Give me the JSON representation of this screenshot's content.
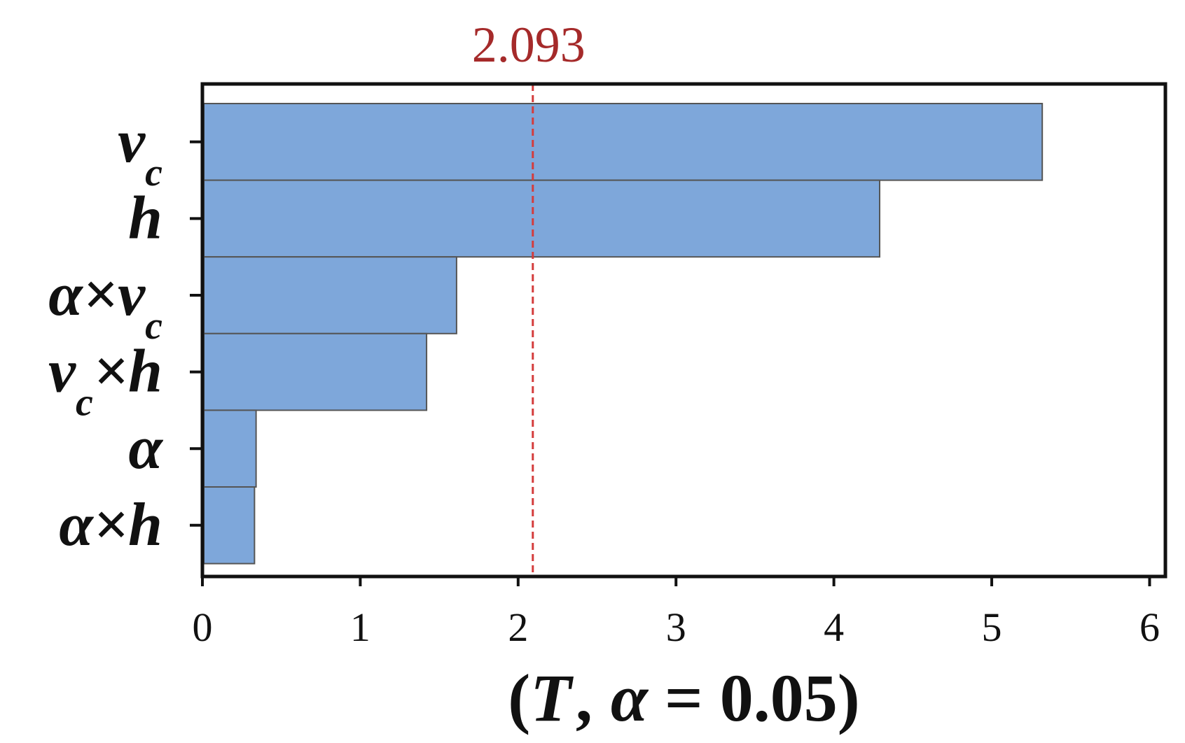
{
  "chart_data": {
    "type": "bar",
    "orientation": "horizontal",
    "categories": [
      {
        "main": "v",
        "sub": "c",
        "tail": ""
      },
      {
        "main": "h",
        "sub": "",
        "tail": ""
      },
      {
        "main": "α×v",
        "sub": "c",
        "tail": ""
      },
      {
        "main": "v",
        "sub": "c",
        "tail": "×h"
      },
      {
        "main": "α",
        "sub": "",
        "tail": ""
      },
      {
        "main": "α×h",
        "sub": "",
        "tail": ""
      }
    ],
    "values": [
      5.32,
      4.29,
      1.61,
      1.42,
      0.34,
      0.33
    ],
    "xlim": [
      0,
      6.1
    ],
    "xticks": [
      "0",
      "1",
      "2",
      "3",
      "4",
      "5",
      "6"
    ],
    "reference_line": {
      "value": 2.093,
      "label": "2.093"
    },
    "xlabel": {
      "open": "(",
      "t": "T",
      "comma": ",",
      "alpha": "α",
      "rest": " = 0.05)"
    },
    "colors": {
      "bar_fill": "#7ea7da",
      "bar_stroke": "#555555",
      "ref_line": "#d43c3c",
      "ref_text": "#a52a2a"
    },
    "grid": false
  }
}
